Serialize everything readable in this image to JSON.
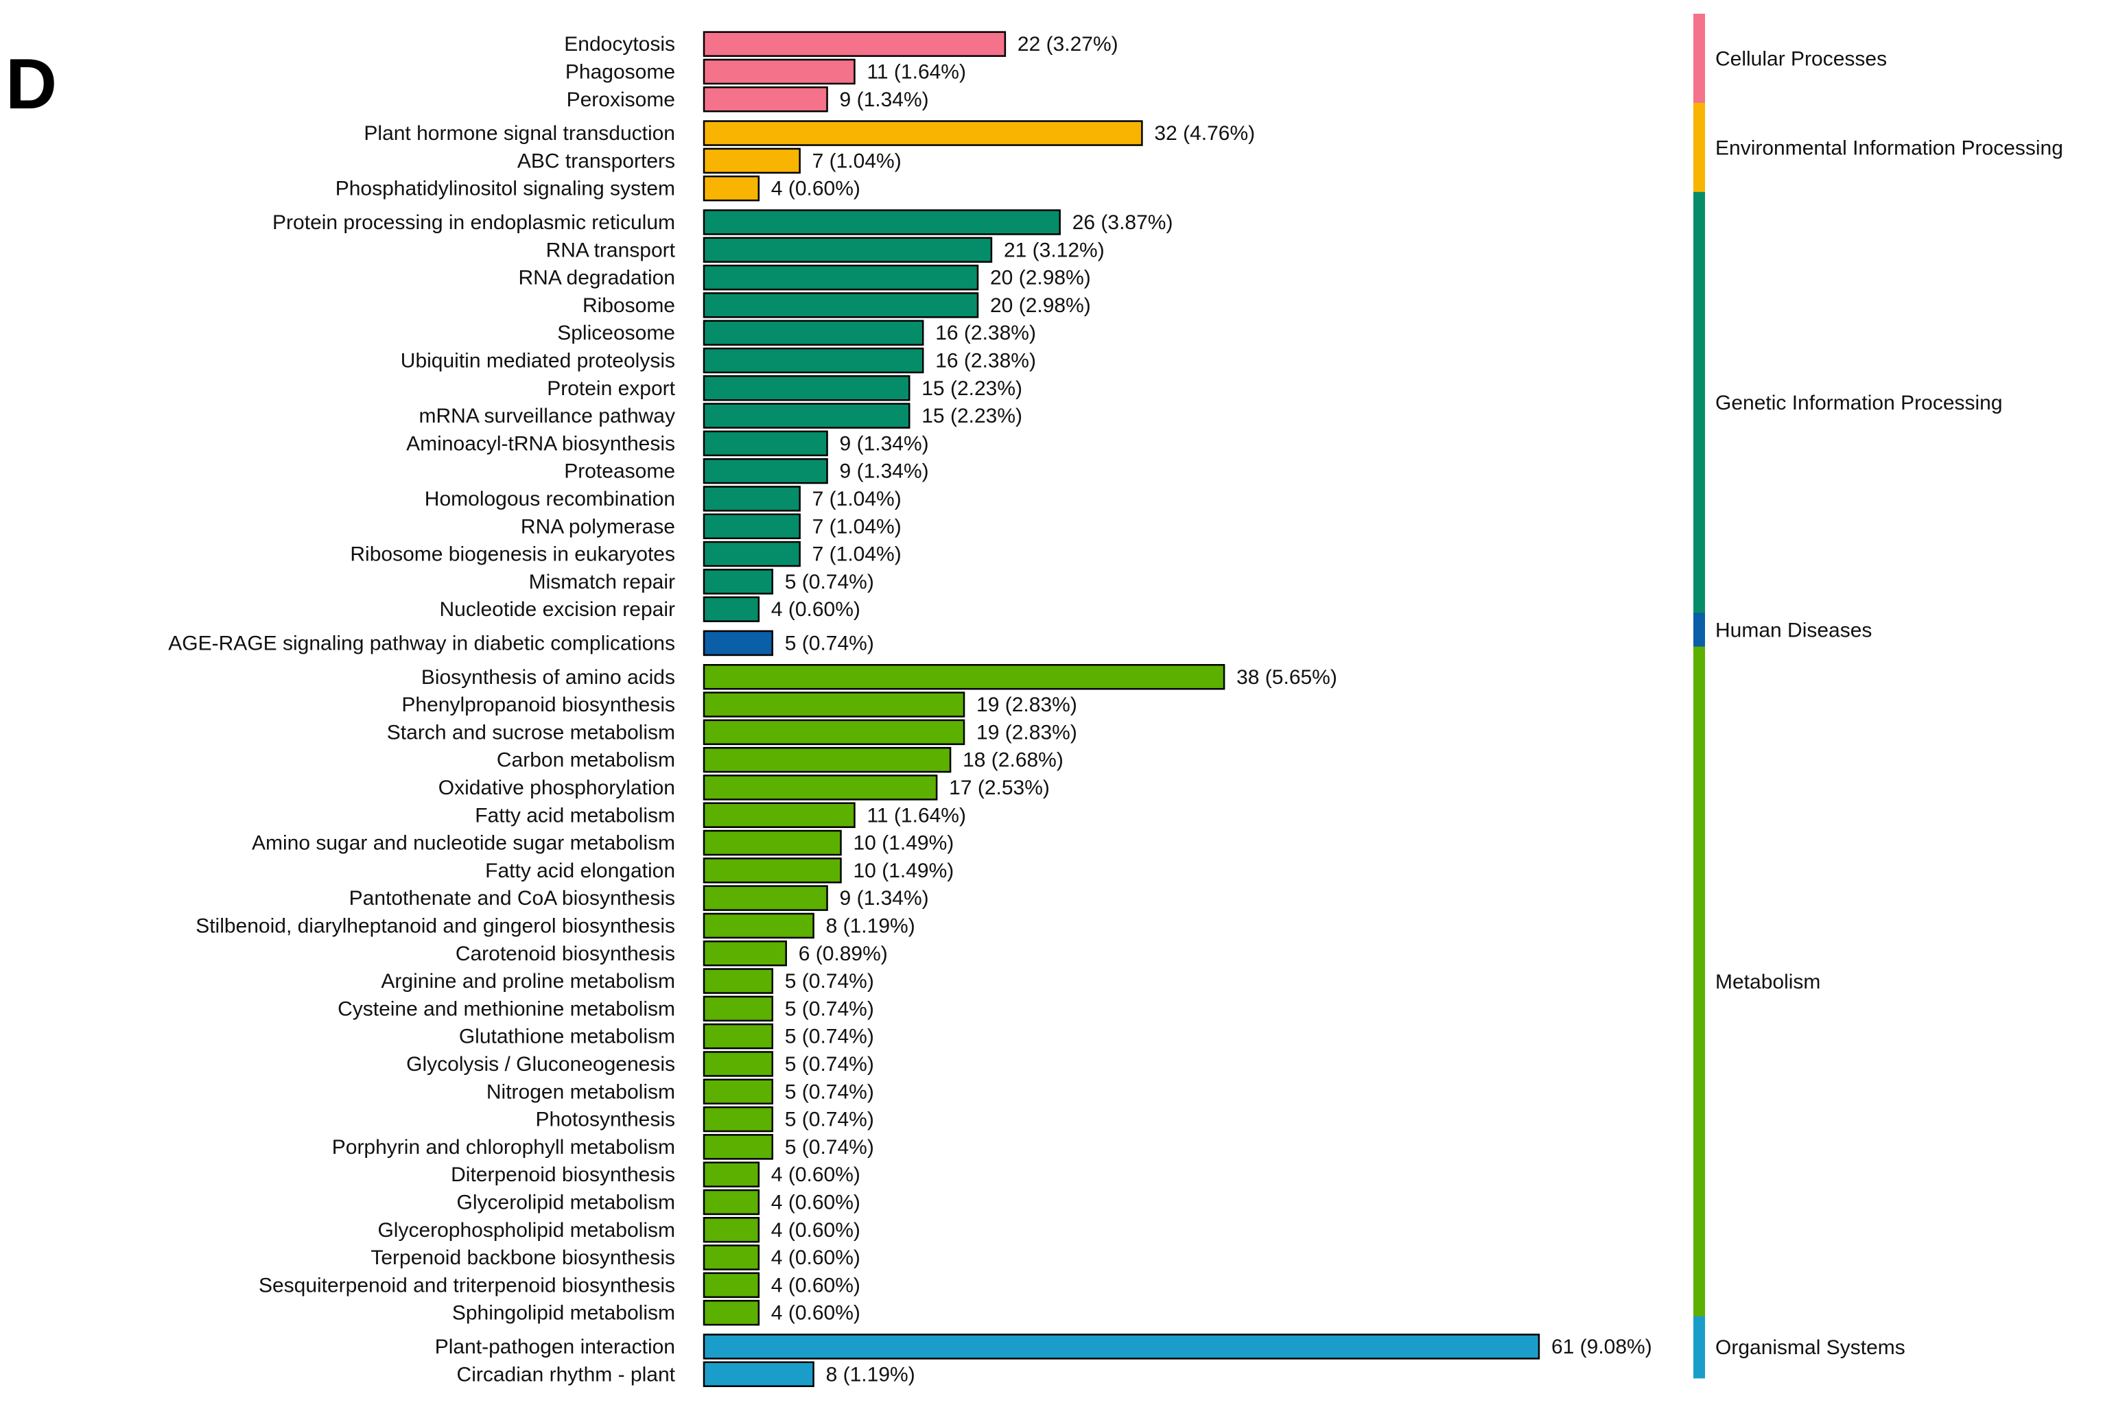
{
  "panel_label": "D",
  "chart_data": {
    "type": "bar",
    "orientation": "horizontal",
    "title": "",
    "xlabel": "",
    "ylabel": "",
    "xlim": [
      0,
      61
    ],
    "groups": [
      {
        "name": "Cellular Processes",
        "color": "#f4728a",
        "items": [
          {
            "label": "Endocytosis",
            "value": 22,
            "pct": "3.27%"
          },
          {
            "label": "Phagosome",
            "value": 11,
            "pct": "1.64%"
          },
          {
            "label": "Peroxisome",
            "value": 9,
            "pct": "1.34%"
          }
        ]
      },
      {
        "name": "Environmental Information Processing",
        "color": "#f8b400",
        "items": [
          {
            "label": "Plant hormone signal transduction",
            "value": 32,
            "pct": "4.76%"
          },
          {
            "label": "ABC transporters",
            "value": 7,
            "pct": "1.04%"
          },
          {
            "label": "Phosphatidylinositol signaling system",
            "value": 4,
            "pct": "0.60%"
          }
        ]
      },
      {
        "name": "Genetic Information Processing",
        "color": "#058d6a",
        "items": [
          {
            "label": "Protein processing in endoplasmic reticulum",
            "value": 26,
            "pct": "3.87%"
          },
          {
            "label": "RNA transport",
            "value": 21,
            "pct": "3.12%"
          },
          {
            "label": "RNA degradation",
            "value": 20,
            "pct": "2.98%"
          },
          {
            "label": "Ribosome",
            "value": 20,
            "pct": "2.98%"
          },
          {
            "label": "Spliceosome",
            "value": 16,
            "pct": "2.38%"
          },
          {
            "label": "Ubiquitin mediated proteolysis",
            "value": 16,
            "pct": "2.38%"
          },
          {
            "label": "Protein export",
            "value": 15,
            "pct": "2.23%"
          },
          {
            "label": "mRNA surveillance pathway",
            "value": 15,
            "pct": "2.23%"
          },
          {
            "label": "Aminoacyl-tRNA biosynthesis",
            "value": 9,
            "pct": "1.34%"
          },
          {
            "label": "Proteasome",
            "value": 9,
            "pct": "1.34%"
          },
          {
            "label": "Homologous recombination",
            "value": 7,
            "pct": "1.04%"
          },
          {
            "label": "RNA polymerase",
            "value": 7,
            "pct": "1.04%"
          },
          {
            "label": "Ribosome biogenesis in eukaryotes",
            "value": 7,
            "pct": "1.04%"
          },
          {
            "label": "Mismatch repair",
            "value": 5,
            "pct": "0.74%"
          },
          {
            "label": "Nucleotide excision repair",
            "value": 4,
            "pct": "0.60%"
          }
        ]
      },
      {
        "name": "Human Diseases",
        "color": "#0b5ea8",
        "items": [
          {
            "label": "AGE-RAGE signaling pathway in diabetic complications",
            "value": 5,
            "pct": "0.74%"
          }
        ]
      },
      {
        "name": "Metabolism",
        "color": "#5cb000",
        "items": [
          {
            "label": "Biosynthesis of amino acids",
            "value": 38,
            "pct": "5.65%"
          },
          {
            "label": "Phenylpropanoid biosynthesis",
            "value": 19,
            "pct": "2.83%"
          },
          {
            "label": "Starch and sucrose metabolism",
            "value": 19,
            "pct": "2.83%"
          },
          {
            "label": "Carbon metabolism",
            "value": 18,
            "pct": "2.68%"
          },
          {
            "label": "Oxidative phosphorylation",
            "value": 17,
            "pct": "2.53%"
          },
          {
            "label": "Fatty acid metabolism",
            "value": 11,
            "pct": "1.64%"
          },
          {
            "label": "Amino sugar and nucleotide sugar metabolism",
            "value": 10,
            "pct": "1.49%"
          },
          {
            "label": "Fatty acid elongation",
            "value": 10,
            "pct": "1.49%"
          },
          {
            "label": "Pantothenate and CoA biosynthesis",
            "value": 9,
            "pct": "1.34%"
          },
          {
            "label": "Stilbenoid, diarylheptanoid and gingerol biosynthesis",
            "value": 8,
            "pct": "1.19%"
          },
          {
            "label": "Carotenoid biosynthesis",
            "value": 6,
            "pct": "0.89%"
          },
          {
            "label": "Arginine and proline metabolism",
            "value": 5,
            "pct": "0.74%"
          },
          {
            "label": "Cysteine and methionine metabolism",
            "value": 5,
            "pct": "0.74%"
          },
          {
            "label": "Glutathione metabolism",
            "value": 5,
            "pct": "0.74%"
          },
          {
            "label": "Glycolysis / Gluconeogenesis",
            "value": 5,
            "pct": "0.74%"
          },
          {
            "label": "Nitrogen metabolism",
            "value": 5,
            "pct": "0.74%"
          },
          {
            "label": "Photosynthesis",
            "value": 5,
            "pct": "0.74%"
          },
          {
            "label": "Porphyrin and chlorophyll metabolism",
            "value": 5,
            "pct": "0.74%"
          },
          {
            "label": "Diterpenoid biosynthesis",
            "value": 4,
            "pct": "0.60%"
          },
          {
            "label": "Glycerolipid metabolism",
            "value": 4,
            "pct": "0.60%"
          },
          {
            "label": "Glycerophospholipid metabolism",
            "value": 4,
            "pct": "0.60%"
          },
          {
            "label": "Terpenoid backbone biosynthesis",
            "value": 4,
            "pct": "0.60%"
          },
          {
            "label": "Sesquiterpenoid and triterpenoid biosynthesis",
            "value": 4,
            "pct": "0.60%"
          },
          {
            "label": "Sphingolipid metabolism",
            "value": 4,
            "pct": "0.60%"
          }
        ]
      },
      {
        "name": "Organismal Systems",
        "color": "#1a9ec9",
        "items": [
          {
            "label": "Plant-pathogen interaction",
            "value": 61,
            "pct": "9.08%"
          },
          {
            "label": "Circadian rhythm - plant",
            "value": 8,
            "pct": "1.19%"
          }
        ]
      }
    ]
  }
}
